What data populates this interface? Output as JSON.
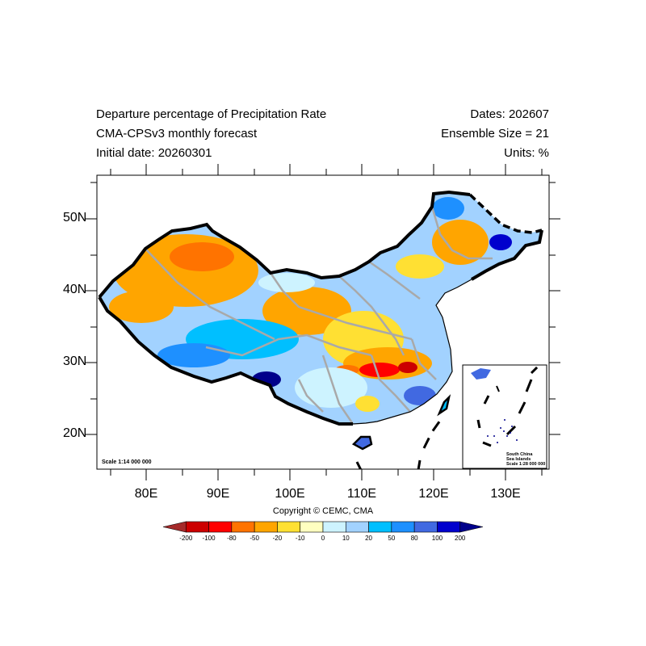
{
  "header": {
    "title": "Departure percentage of Precipitation Rate",
    "model": "CMA-CPSv3 monthly forecast",
    "initial": "Initial date: 20260301",
    "dates": "Dates: 202607",
    "ensemble": "Ensemble Size = 21",
    "units": "Units: %"
  },
  "axes": {
    "lat_labels": [
      "50N",
      "40N",
      "30N",
      "20N"
    ],
    "lon_labels": [
      "80E",
      "90E",
      "100E",
      "110E",
      "120E",
      "130E"
    ]
  },
  "map": {
    "scale_main": "Scale 1:14 000 000",
    "inset_title_line1": "South China",
    "inset_title_line2": "Sea Islands",
    "inset_scale": "Scale 1:28 000 000"
  },
  "copyright": "Copyright © CEMC, CMA",
  "colorbar": {
    "labels": [
      "-200",
      "-100",
      "-80",
      "-50",
      "-20",
      "-10",
      "0",
      "10",
      "20",
      "50",
      "80",
      "100",
      "200"
    ],
    "colors": [
      "#a52a2a",
      "#cc0000",
      "#ff0000",
      "#ff7300",
      "#ffa500",
      "#ffe033",
      "#ffffc0",
      "#cdf3ff",
      "#a2d2ff",
      "#00bfff",
      "#1e90ff",
      "#4169e1",
      "#0000cd",
      "#00008b"
    ]
  }
}
